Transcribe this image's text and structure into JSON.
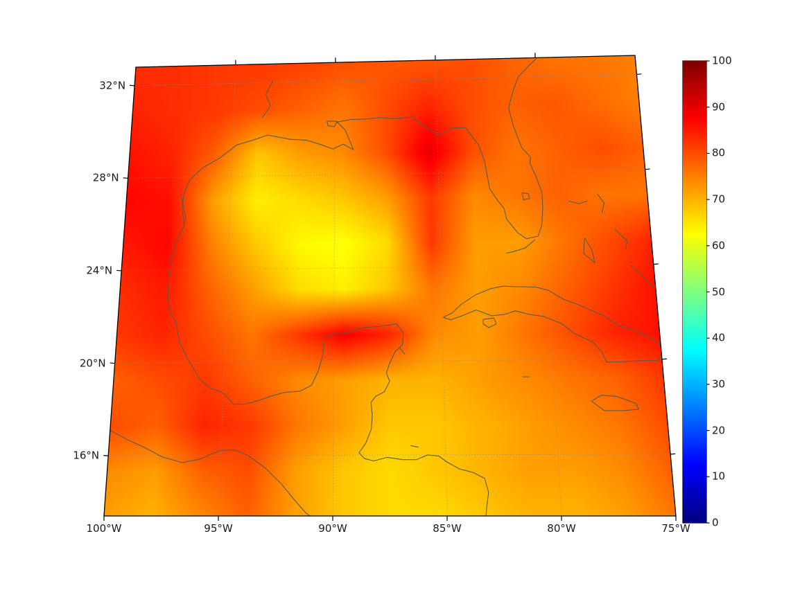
{
  "figure": {
    "background": "#ffffff",
    "axes": {
      "lat_ticks": [
        {
          "value": 32,
          "label": "32°N"
        },
        {
          "value": 28,
          "label": "28°N"
        },
        {
          "value": 24,
          "label": "24°N"
        },
        {
          "value": 20,
          "label": "20°N"
        },
        {
          "value": 16,
          "label": "16°N"
        }
      ],
      "lon_ticks": [
        {
          "value": -100,
          "label": "100°W"
        },
        {
          "value": -95,
          "label": "95°W"
        },
        {
          "value": -90,
          "label": "90°W"
        },
        {
          "value": -85,
          "label": "85°W"
        },
        {
          "value": -80,
          "label": "80°W"
        },
        {
          "value": -75,
          "label": "75°W"
        }
      ],
      "grid_lats": [
        16,
        20,
        24,
        28,
        32
      ],
      "grid_lons": [
        -95,
        -90,
        -85,
        -80
      ]
    },
    "colorbar": {
      "min": 0,
      "max": 100,
      "colormap": "jet",
      "ticks": [
        {
          "value": 0,
          "label": "0"
        },
        {
          "value": 10,
          "label": "10"
        },
        {
          "value": 20,
          "label": "20"
        },
        {
          "value": 30,
          "label": "30"
        },
        {
          "value": 40,
          "label": "40"
        },
        {
          "value": 50,
          "label": "50"
        },
        {
          "value": 60,
          "label": "60"
        },
        {
          "value": 70,
          "label": "70"
        },
        {
          "value": 80,
          "label": "80"
        },
        {
          "value": 90,
          "label": "90"
        },
        {
          "value": 100,
          "label": "100"
        }
      ]
    },
    "colors": {
      "coastline": "#5a5a46",
      "border": "#000000",
      "graticule": "#8a8a8a",
      "label": "#1a1a1a"
    }
  },
  "chart_data": {
    "type": "heatmap",
    "title": "",
    "region": "Gulf of Mexico and Caribbean",
    "projection": "conic (Lambert-like), trapezoidal frame",
    "extent": {
      "lon_min": -100,
      "lon_max": -75,
      "lat_min": 13.4,
      "lat_max": 32.8
    },
    "colormap": "jet",
    "vmin": 0,
    "vmax": 100,
    "grid": {
      "lons": [
        -100,
        -97.9,
        -95.8,
        -93.8,
        -91.7,
        -89.6,
        -87.5,
        -85.4,
        -83.3,
        -81.3,
        -79.2,
        -77.1,
        -75
      ],
      "lats": [
        32.8,
        30.86,
        28.92,
        26.98,
        25.04,
        23.1,
        21.16,
        19.22,
        17.28,
        15.34,
        13.4
      ],
      "values": [
        [
          83,
          83,
          82,
          82,
          81,
          80,
          79,
          79,
          80,
          78,
          76,
          76,
          75
        ],
        [
          84,
          83,
          82,
          80,
          78,
          76,
          80,
          84,
          80,
          78,
          79,
          77,
          75
        ],
        [
          86,
          84,
          78,
          68,
          72,
          74,
          80,
          90,
          80,
          76,
          78,
          80,
          78
        ],
        [
          87,
          86,
          72,
          64,
          66,
          68,
          72,
          82,
          74,
          76,
          78,
          76,
          76
        ],
        [
          85,
          87,
          75,
          68,
          63,
          62,
          66,
          82,
          72,
          72,
          76,
          80,
          84
        ],
        [
          83,
          85,
          78,
          72,
          66,
          64,
          68,
          76,
          72,
          74,
          78,
          82,
          86
        ],
        [
          82,
          84,
          80,
          76,
          82,
          88,
          84,
          74,
          72,
          76,
          80,
          84,
          86
        ],
        [
          78,
          80,
          82,
          78,
          74,
          72,
          70,
          70,
          72,
          74,
          76,
          78,
          82
        ],
        [
          80,
          78,
          84,
          82,
          76,
          72,
          68,
          68,
          70,
          72,
          74,
          76,
          80
        ],
        [
          74,
          72,
          78,
          80,
          72,
          68,
          66,
          68,
          70,
          72,
          72,
          74,
          78
        ],
        [
          72,
          70,
          74,
          78,
          72,
          68,
          66,
          66,
          68,
          70,
          70,
          72,
          76
        ]
      ]
    },
    "coastlines": [
      {
        "name": "us-atlantic-gulf",
        "points": [
          [
            -79.9,
            32.8
          ],
          [
            -80.3,
            32.5
          ],
          [
            -80.9,
            32.0
          ],
          [
            -81.2,
            31.4
          ],
          [
            -81.45,
            30.7
          ],
          [
            -81.25,
            29.9
          ],
          [
            -80.9,
            29.0
          ],
          [
            -80.5,
            28.6
          ],
          [
            -80.55,
            28.35
          ],
          [
            -80.3,
            27.8
          ],
          [
            -80.05,
            27.1
          ],
          [
            -80.05,
            26.4
          ],
          [
            -80.15,
            25.7
          ],
          [
            -80.35,
            25.25
          ],
          [
            -80.9,
            25.15
          ],
          [
            -81.3,
            25.4
          ],
          [
            -81.8,
            26.0
          ],
          [
            -81.9,
            26.45
          ],
          [
            -82.2,
            26.8
          ],
          [
            -82.55,
            27.3
          ],
          [
            -82.65,
            27.9
          ],
          [
            -82.75,
            28.5
          ],
          [
            -83.0,
            29.15
          ],
          [
            -83.6,
            29.9
          ],
          [
            -84.3,
            29.9
          ],
          [
            -84.9,
            29.6
          ],
          [
            -85.5,
            29.9
          ],
          [
            -86.2,
            30.4
          ],
          [
            -87.0,
            30.35
          ],
          [
            -87.9,
            30.4
          ],
          [
            -88.5,
            30.35
          ],
          [
            -89.2,
            30.35
          ],
          [
            -89.9,
            30.25
          ],
          [
            -89.5,
            29.9
          ],
          [
            -89.1,
            29.05
          ],
          [
            -89.6,
            29.3
          ],
          [
            -90.1,
            29.1
          ],
          [
            -90.7,
            29.3
          ],
          [
            -91.4,
            29.5
          ],
          [
            -92.2,
            29.55
          ],
          [
            -93.3,
            29.75
          ],
          [
            -94.0,
            29.55
          ],
          [
            -94.8,
            29.35
          ],
          [
            -95.6,
            28.8
          ],
          [
            -96.4,
            28.4
          ],
          [
            -97.0,
            27.9
          ],
          [
            -97.25,
            27.3
          ],
          [
            -97.3,
            26.6
          ],
          [
            -97.15,
            25.95
          ]
        ]
      },
      {
        "name": "mexico-centralamerica",
        "points": [
          [
            -97.15,
            25.95
          ],
          [
            -97.5,
            25.2
          ],
          [
            -97.7,
            24.4
          ],
          [
            -97.75,
            23.6
          ],
          [
            -97.75,
            22.8
          ],
          [
            -97.6,
            22.2
          ],
          [
            -97.3,
            21.7
          ],
          [
            -97.1,
            20.9
          ],
          [
            -96.7,
            20.2
          ],
          [
            -96.1,
            19.3
          ],
          [
            -95.6,
            18.9
          ],
          [
            -95.0,
            18.7
          ],
          [
            -94.5,
            18.2
          ],
          [
            -94.0,
            18.2
          ],
          [
            -93.4,
            18.35
          ],
          [
            -92.8,
            18.55
          ],
          [
            -92.2,
            18.7
          ],
          [
            -91.5,
            18.75
          ],
          [
            -91.0,
            19.0
          ],
          [
            -90.7,
            19.6
          ],
          [
            -90.5,
            20.3
          ],
          [
            -90.45,
            21.0
          ],
          [
            -90.1,
            21.15
          ],
          [
            -89.4,
            21.25
          ],
          [
            -88.6,
            21.45
          ],
          [
            -87.8,
            21.5
          ],
          [
            -87.1,
            21.6
          ],
          [
            -86.8,
            21.2
          ],
          [
            -86.85,
            20.7
          ],
          [
            -87.2,
            20.4
          ],
          [
            -87.45,
            19.9
          ],
          [
            -87.6,
            19.5
          ],
          [
            -87.45,
            19.15
          ],
          [
            -87.7,
            18.7
          ],
          [
            -88.1,
            18.5
          ],
          [
            -88.3,
            18.25
          ],
          [
            -88.25,
            17.7
          ],
          [
            -88.3,
            17.1
          ],
          [
            -88.55,
            16.5
          ],
          [
            -88.85,
            16.1
          ],
          [
            -88.6,
            15.85
          ],
          [
            -88.2,
            15.75
          ],
          [
            -87.6,
            15.9
          ],
          [
            -86.9,
            15.8
          ],
          [
            -86.3,
            15.8
          ],
          [
            -85.8,
            16.0
          ],
          [
            -85.3,
            15.95
          ],
          [
            -84.95,
            15.7
          ],
          [
            -84.4,
            15.4
          ],
          [
            -83.8,
            15.25
          ],
          [
            -83.3,
            15.0
          ],
          [
            -83.15,
            14.4
          ],
          [
            -83.25,
            13.8
          ],
          [
            -83.3,
            13.4
          ]
        ]
      },
      {
        "name": "pacific",
        "points": [
          [
            -100,
            17.1
          ],
          [
            -99.2,
            16.7
          ],
          [
            -98.4,
            16.35
          ],
          [
            -97.6,
            15.95
          ],
          [
            -96.7,
            15.7
          ],
          [
            -95.9,
            15.85
          ],
          [
            -95.1,
            16.2
          ],
          [
            -94.4,
            16.25
          ],
          [
            -93.7,
            15.95
          ],
          [
            -93.0,
            15.45
          ],
          [
            -92.3,
            14.8
          ],
          [
            -91.7,
            14.1
          ],
          [
            -91.2,
            13.55
          ],
          [
            -91.0,
            13.4
          ]
        ]
      },
      {
        "name": "cuba",
        "points": [
          [
            -84.95,
            21.85
          ],
          [
            -84.5,
            22.05
          ],
          [
            -84.1,
            22.4
          ],
          [
            -83.4,
            22.8
          ],
          [
            -82.7,
            23.05
          ],
          [
            -82.1,
            23.15
          ],
          [
            -81.4,
            23.12
          ],
          [
            -80.6,
            23.1
          ],
          [
            -80.0,
            22.95
          ],
          [
            -79.3,
            22.55
          ],
          [
            -78.7,
            22.35
          ],
          [
            -78.1,
            22.1
          ],
          [
            -77.5,
            21.85
          ],
          [
            -76.8,
            21.4
          ],
          [
            -76.2,
            21.25
          ],
          [
            -75.6,
            21.0
          ],
          [
            -75.1,
            20.7
          ],
          [
            -74.9,
            20.3
          ],
          [
            -75.2,
            19.95
          ],
          [
            -76.0,
            19.95
          ],
          [
            -76.9,
            19.9
          ],
          [
            -77.55,
            19.9
          ],
          [
            -77.7,
            20.3
          ],
          [
            -78.1,
            20.75
          ],
          [
            -78.9,
            21.1
          ],
          [
            -79.5,
            21.55
          ],
          [
            -80.3,
            21.85
          ],
          [
            -81.0,
            21.95
          ],
          [
            -81.6,
            22.1
          ],
          [
            -82.1,
            21.95
          ],
          [
            -82.7,
            21.9
          ],
          [
            -83.4,
            22.15
          ],
          [
            -84.1,
            21.9
          ],
          [
            -84.6,
            21.75
          ],
          [
            -84.95,
            21.85
          ]
        ]
      },
      {
        "name": "isla-de-la-juventud",
        "points": [
          [
            -83.1,
            21.75
          ],
          [
            -82.6,
            21.8
          ],
          [
            -82.5,
            21.55
          ],
          [
            -82.85,
            21.4
          ],
          [
            -83.1,
            21.55
          ],
          [
            -83.1,
            21.75
          ]
        ]
      },
      {
        "name": "jamaica",
        "points": [
          [
            -78.35,
            18.25
          ],
          [
            -77.9,
            18.5
          ],
          [
            -77.2,
            18.45
          ],
          [
            -76.35,
            18.15
          ],
          [
            -76.25,
            17.9
          ],
          [
            -76.9,
            17.85
          ],
          [
            -77.8,
            17.85
          ],
          [
            -78.35,
            18.25
          ]
        ]
      },
      {
        "name": "grand-bahama",
        "points": [
          [
            -78.8,
            26.72
          ],
          [
            -78.3,
            26.6
          ],
          [
            -77.9,
            26.7
          ]
        ]
      },
      {
        "name": "abaco",
        "points": [
          [
            -77.4,
            27.0
          ],
          [
            -77.1,
            26.6
          ],
          [
            -77.25,
            26.2
          ]
        ]
      },
      {
        "name": "andros",
        "points": [
          [
            -78.15,
            25.15
          ],
          [
            -77.85,
            24.65
          ],
          [
            -77.75,
            24.1
          ],
          [
            -78.25,
            24.5
          ],
          [
            -78.15,
            25.15
          ]
        ]
      },
      {
        "name": "eleuthera",
        "points": [
          [
            -76.7,
            25.5
          ],
          [
            -76.15,
            25.0
          ],
          [
            -76.25,
            24.65
          ]
        ]
      },
      {
        "name": "exuma-long-island",
        "points": [
          [
            -76.1,
            24.0
          ],
          [
            -75.4,
            23.35
          ],
          [
            -75.1,
            23.0
          ]
        ]
      },
      {
        "name": "florida-keys",
        "points": [
          [
            -80.5,
            25.1
          ],
          [
            -81.0,
            24.75
          ],
          [
            -81.6,
            24.6
          ],
          [
            -81.9,
            24.55
          ]
        ]
      },
      {
        "name": "lake-okeechobee",
        "points": [
          [
            -81.0,
            27.1
          ],
          [
            -80.7,
            27.05
          ],
          [
            -80.65,
            26.85
          ],
          [
            -80.95,
            26.8
          ],
          [
            -81.0,
            27.1
          ]
        ]
      },
      {
        "name": "lake-pontchartrain",
        "points": [
          [
            -90.4,
            30.3
          ],
          [
            -89.9,
            30.28
          ],
          [
            -90.05,
            30.05
          ],
          [
            -90.35,
            30.1
          ],
          [
            -90.4,
            30.3
          ]
        ]
      },
      {
        "name": "cozumel",
        "points": [
          [
            -87.0,
            20.6
          ],
          [
            -86.75,
            20.3
          ]
        ]
      },
      {
        "name": "red-river",
        "points": [
          [
            -93.1,
            32.1
          ],
          [
            -93.45,
            31.5
          ],
          [
            -93.2,
            31.0
          ],
          [
            -93.6,
            30.5
          ]
        ]
      },
      {
        "name": "padre-island",
        "points": [
          [
            -97.4,
            27.3
          ],
          [
            -97.1,
            26.2
          ],
          [
            -97.2,
            25.95
          ]
        ]
      },
      {
        "name": "roatan",
        "points": [
          [
            -86.55,
            16.4
          ],
          [
            -86.2,
            16.33
          ]
        ]
      },
      {
        "name": "grand-cayman",
        "points": [
          [
            -81.4,
            19.3
          ],
          [
            -81.1,
            19.3
          ]
        ]
      }
    ]
  }
}
